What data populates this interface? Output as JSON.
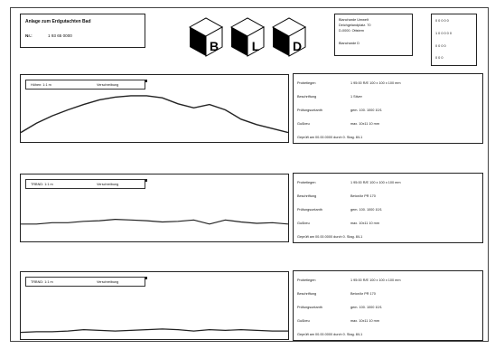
{
  "title_box": {
    "heading": "Anlage zum Erdgutachten Bad",
    "label": "Nr.:",
    "number": "1 93 65 0000"
  },
  "logo": {
    "letters": [
      "B",
      "L",
      "D"
    ]
  },
  "address": {
    "lines": [
      "Blancharde Umwelt",
      "Deichgelandplatz. 70",
      "D-0000. Ottstem",
      "Blancharde D"
    ]
  },
  "corner": {
    "lines": [
      "0 0 0 0 0",
      "1 0 0 0 0 0",
      "0 0 0 0",
      "0 0 0"
    ]
  },
  "panels": [
    {
      "legend_left": "Höhen: 1:1 m",
      "legend_right": "Verschreibung",
      "profile": [
        0.86,
        0.72,
        0.61,
        0.52,
        0.44,
        0.37,
        0.33,
        0.31,
        0.31,
        0.34,
        0.43,
        0.49,
        0.44,
        0.52,
        0.66,
        0.74,
        0.8,
        0.86
      ],
      "info": [
        {
          "k": "Probetiegen",
          "v": "1 95:00 R/E 100 x 100 x 100 mm"
        },
        {
          "k": "Beschriftung",
          "v": "1 Stiver"
        },
        {
          "k": "Prüfungsuntanth",
          "v": "gem. 100. 1000 10/1"
        },
        {
          "k": "Gußbeu",
          "v": "max. 10x11 10 mm"
        }
      ],
      "footer": "Geprüft am 00.00.0000 durch   0. Stag. 8/L1"
    },
    {
      "legend_left": "TRBND: 1:1 m",
      "legend_right": "Verschreibung",
      "profile": [
        0.74,
        0.74,
        0.72,
        0.72,
        0.7,
        0.69,
        0.67,
        0.68,
        0.69,
        0.71,
        0.7,
        0.68,
        0.74,
        0.68,
        0.71,
        0.73,
        0.72,
        0.74
      ],
      "info": [
        {
          "k": "Probetiegen",
          "v": "1 95:00 R/E 100 x 100 x 100 mm"
        },
        {
          "k": "Beschriftung",
          "v": "Beton/kr PR 170"
        },
        {
          "k": "Prüfungsuntanth",
          "v": "gem. 100. 1000 10/1"
        },
        {
          "k": "Gußbeu",
          "v": "max. 10x11 10 mm"
        }
      ],
      "footer": "Geprüft am 00.00.0000 durch   0. Stag. 8/L1"
    },
    {
      "legend_left": "TRBND: 1:1 m",
      "legend_right": "Verschreibung",
      "profile": [
        0.9,
        0.89,
        0.89,
        0.88,
        0.86,
        0.87,
        0.88,
        0.87,
        0.86,
        0.85,
        0.86,
        0.88,
        0.86,
        0.87,
        0.86,
        0.87,
        0.88,
        0.88
      ],
      "info": [
        {
          "k": "Probetiegen",
          "v": "1 95:00 R/E 100 x 100 x 100 mm"
        },
        {
          "k": "Beschriftung",
          "v": "Beton/kr PR 170"
        },
        {
          "k": "Prüfungsuntanth",
          "v": "gem. 100. 1000 10/1"
        },
        {
          "k": "Gußbeu",
          "v": "max. 10x11 10 mm"
        }
      ],
      "footer": "Geprüft am 00.00.0000 durch   0. Stag. 8/L1"
    }
  ]
}
